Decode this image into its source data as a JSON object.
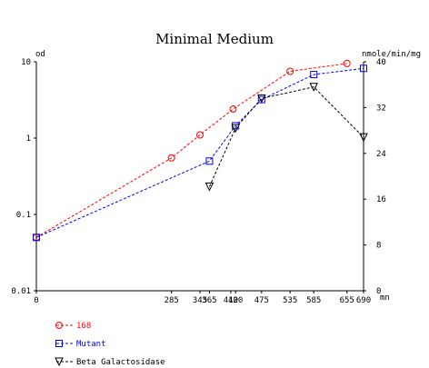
{
  "chart_data": {
    "type": "line",
    "title": "Minimal Medium",
    "xlabel": "mn",
    "ylabel_left": "od",
    "ylabel_right": "nmole/min/mg",
    "x_ticks": [
      0,
      285,
      345,
      365,
      410,
      420,
      475,
      535,
      585,
      655,
      690
    ],
    "x_range": [
      0,
      690
    ],
    "y_left_scale": "log",
    "y_left_range": [
      0.01,
      10
    ],
    "y_left_ticks": [
      "0.01",
      "0.1",
      "1",
      "10"
    ],
    "y_right_range": [
      0,
      40
    ],
    "y_right_ticks": [
      "0",
      "8",
      "16",
      "24",
      "32",
      "40"
    ],
    "series": [
      {
        "name": "168",
        "axis": "left",
        "color": "#ff0000",
        "marker": "circle",
        "x": [
          0,
          285,
          345,
          415,
          535,
          655
        ],
        "y": [
          0.05,
          0.55,
          1.1,
          2.4,
          7.5,
          9.5
        ]
      },
      {
        "name": "Mutant",
        "axis": "left",
        "color": "#0000ff",
        "marker": "square",
        "x": [
          0,
          365,
          420,
          475,
          585,
          690
        ],
        "y": [
          0.05,
          0.5,
          1.45,
          3.2,
          6.8,
          8.2
        ]
      },
      {
        "name": "Beta Galactosidase",
        "axis": "right",
        "color": "#000000",
        "marker": "triangle",
        "x": [
          365,
          420,
          475,
          585,
          690
        ],
        "y": [
          18.2,
          28.4,
          33.6,
          35.6,
          26.8
        ]
      }
    ],
    "grid": false,
    "legend_position": "bottom-left"
  }
}
